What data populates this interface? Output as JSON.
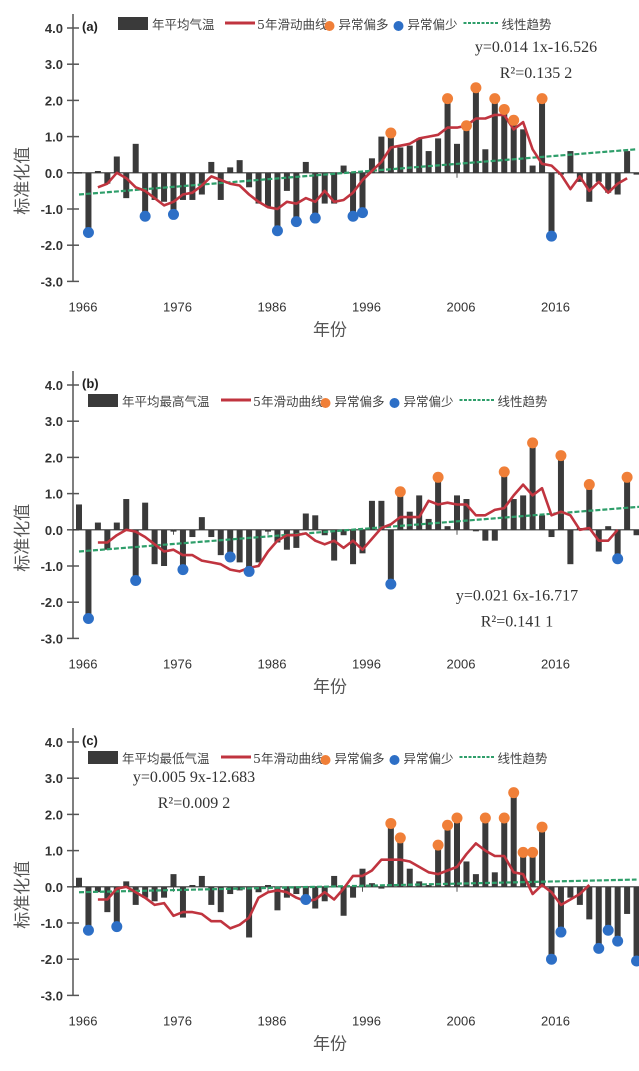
{
  "chart_data": [
    {
      "type": "bar",
      "panel": "(a)",
      "title": "",
      "xlabel": "年份",
      "ylabel": "标准化值",
      "ylim": [
        -3.0,
        4.0
      ],
      "yticks": [
        "4.0",
        "3.0",
        "2.0",
        "1.0",
        "0.0",
        "-1.0",
        "-2.0",
        "-3.0"
      ],
      "xticks": [
        "1966",
        "1976",
        "1986",
        "1996",
        "2006",
        "2016"
      ],
      "x_start": 1966,
      "legend": {
        "bar": "年平均气温",
        "line": "5年滑动曲线",
        "high": "异常偏多",
        "low": "异常偏少",
        "trend": "线性趋势"
      },
      "legend_position": "top",
      "equation": "y=0.014 1x-16.526",
      "r2": "R²=0.135 2",
      "equation_position": "top-right",
      "trend": {
        "start": -0.6,
        "end": 0.65
      },
      "values": [
        0.02,
        -1.65,
        0.05,
        -0.3,
        0.45,
        -0.7,
        0.8,
        -1.2,
        -0.75,
        -0.8,
        -1.15,
        -0.75,
        -0.75,
        -0.6,
        0.3,
        -0.75,
        0.15,
        0.35,
        -0.4,
        -0.85,
        -0.95,
        -1.6,
        -0.5,
        -1.35,
        0.3,
        -1.25,
        -0.85,
        -0.85,
        0.2,
        -1.2,
        -1.1,
        0.4,
        1.0,
        1.1,
        0.7,
        0.75,
        0.95,
        0.6,
        0.95,
        2.05,
        0.8,
        1.3,
        2.35,
        0.65,
        2.05,
        1.75,
        1.45,
        1.2,
        0.2,
        2.05,
        -1.75,
        -0.05,
        0.6,
        -0.25,
        -0.8,
        -0.25,
        -0.55,
        -0.6,
        0.6,
        -0.05
      ],
      "high_markers": [
        33,
        39,
        41,
        42,
        44,
        45,
        46,
        49
      ],
      "low_markers": [
        1,
        7,
        10,
        21,
        23,
        25,
        29,
        30,
        50
      ],
      "moving_avg": [
        null,
        null,
        -0.4,
        -0.3,
        0.0,
        -0.15,
        -0.4,
        -0.5,
        -0.7,
        -0.9,
        -0.8,
        -0.6,
        -0.55,
        -0.35,
        -0.1,
        -0.2,
        -0.3,
        -0.35,
        -0.6,
        -0.8,
        -0.95,
        -1.0,
        -0.8,
        -0.85,
        -0.7,
        -0.8,
        -0.5,
        -0.8,
        -0.75,
        -0.55,
        -0.2,
        0.05,
        0.3,
        0.7,
        0.75,
        0.8,
        0.95,
        1.0,
        1.05,
        1.25,
        1.25,
        1.3,
        1.5,
        1.5,
        1.6,
        1.6,
        1.2,
        1.4,
        0.65,
        0.25,
        0.2,
        -0.05,
        -0.45,
        -0.1,
        -0.5,
        -0.25,
        -0.55,
        -0.3,
        -0.15,
        null
      ]
    },
    {
      "type": "bar",
      "panel": "(b)",
      "title": "",
      "xlabel": "年份",
      "ylabel": "标准化值",
      "ylim": [
        -3.0,
        4.0
      ],
      "yticks": [
        "4.0",
        "3.0",
        "2.0",
        "1.0",
        "0.0",
        "-1.0",
        "-2.0",
        "-3.0"
      ],
      "xticks": [
        "1966",
        "1976",
        "1986",
        "1996",
        "2006",
        "2016"
      ],
      "x_start": 1966,
      "legend": {
        "bar": "年平均最高气温",
        "line": "5年滑动曲线",
        "high": "异常偏多",
        "low": "异常偏少",
        "trend": "线性趋势"
      },
      "legend_position": "top",
      "equation": "y=0.021 6x-16.717",
      "r2": "R²=0.141 1",
      "equation_position": "bottom-right",
      "trend": {
        "start": -0.6,
        "end": 0.65
      },
      "values": [
        0.7,
        -2.45,
        0.2,
        -0.55,
        0.2,
        0.85,
        -1.4,
        0.75,
        -0.95,
        -1.0,
        -0.05,
        -1.1,
        -0.2,
        0.35,
        -0.2,
        -0.7,
        -0.75,
        -0.9,
        -1.15,
        -0.9,
        -0.05,
        -0.35,
        -0.55,
        -0.5,
        0.45,
        0.4,
        -0.15,
        -0.85,
        -0.15,
        -0.95,
        -0.65,
        0.8,
        0.8,
        -1.5,
        1.05,
        0.5,
        0.95,
        0.3,
        1.45,
        0.1,
        0.95,
        0.85,
        0.0,
        -0.3,
        -0.3,
        1.6,
        0.85,
        0.95,
        2.4,
        0.4,
        -0.2,
        2.05,
        -0.95,
        0.05,
        1.25,
        -0.6,
        0.1,
        -0.8,
        1.45,
        -0.15,
        0.85
      ],
      "high_markers": [
        34,
        38,
        45,
        48,
        51,
        54,
        58
      ],
      "low_markers": [
        1,
        6,
        11,
        16,
        18,
        33,
        57
      ],
      "moving_avg": [
        null,
        null,
        -0.35,
        -0.35,
        -0.15,
        0.0,
        -0.05,
        -0.2,
        -0.4,
        -0.6,
        -0.55,
        -0.7,
        -0.7,
        -0.85,
        -0.9,
        -0.95,
        -1.1,
        -1.15,
        -1.05,
        -1.0,
        -0.6,
        -0.3,
        -0.15,
        -0.15,
        -0.1,
        -0.3,
        -0.4,
        -0.3,
        -0.5,
        -0.3,
        -0.55,
        -0.25,
        0.05,
        0.15,
        0.35,
        0.35,
        0.35,
        0.8,
        0.7,
        0.75,
        0.7,
        0.7,
        0.4,
        0.4,
        0.55,
        0.6,
        0.95,
        1.25,
        0.95,
        1.15,
        0.4,
        0.5,
        0.4,
        0.0,
        0.05,
        -0.3,
        -0.3,
        0.0,
        null,
        null,
        null
      ]
    },
    {
      "type": "bar",
      "panel": "(c)",
      "title": "",
      "xlabel": "年份",
      "ylabel": "标准化值",
      "ylim": [
        -3.0,
        4.0
      ],
      "yticks": [
        "4.0",
        "3.0",
        "2.0",
        "1.0",
        "0.0",
        "-1.0",
        "-2.0",
        "-3.0"
      ],
      "xticks": [
        "1966",
        "1976",
        "1986",
        "1996",
        "2006",
        "2016"
      ],
      "x_start": 1966,
      "legend": {
        "bar": "年平均最低气温",
        "line": "5年滑动曲线",
        "high": "异常偏多",
        "low": "异常偏少",
        "trend": "线性趋势"
      },
      "legend_position": "top",
      "equation": "y=0.005 9x-12.683",
      "r2": "R²=0.009 2",
      "equation_position": "top-left",
      "trend": {
        "start": -0.15,
        "end": 0.2
      },
      "values": [
        0.25,
        -1.2,
        -0.15,
        -0.7,
        -1.1,
        0.15,
        -0.5,
        -0.3,
        -0.4,
        -0.3,
        0.35,
        -0.85,
        0.05,
        0.3,
        -0.5,
        -0.7,
        -0.2,
        -0.1,
        -1.4,
        -0.15,
        0.05,
        -0.65,
        -0.3,
        -0.2,
        -0.35,
        -0.6,
        -0.4,
        0.3,
        -0.8,
        -0.3,
        0.5,
        0.1,
        -0.05,
        1.75,
        1.35,
        0.5,
        0.15,
        0.05,
        1.15,
        1.7,
        1.9,
        0.7,
        0.35,
        1.9,
        0.4,
        1.9,
        2.6,
        0.95,
        0.95,
        1.65,
        -2.0,
        -1.25,
        -0.3,
        -0.5,
        -0.9,
        -1.7,
        -1.2,
        -1.5,
        -0.75,
        -2.05
      ],
      "high_markers": [
        33,
        34,
        38,
        39,
        40,
        43,
        45,
        46,
        47,
        48,
        49
      ],
      "low_markers": [
        1,
        4,
        24,
        50,
        51,
        55,
        56,
        57,
        59
      ],
      "moving_avg": [
        null,
        null,
        -0.35,
        -0.35,
        -0.05,
        0.0,
        -0.15,
        -0.3,
        -0.5,
        -0.45,
        -0.8,
        -0.7,
        -0.7,
        -0.75,
        -0.95,
        -0.95,
        -1.15,
        -1.05,
        -0.85,
        -0.3,
        -0.15,
        -0.1,
        -0.15,
        -0.3,
        -0.4,
        -0.35,
        -0.15,
        -0.35,
        -0.05,
        0.3,
        0.3,
        0.45,
        0.75,
        0.75,
        0.75,
        0.7,
        0.55,
        0.4,
        0.35,
        0.45,
        0.55,
        0.9,
        1.2,
        1.0,
        0.85,
        0.85,
        0.4,
        0.35,
        -0.2,
        0.05,
        -0.15,
        -0.5,
        -0.35,
        -0.2,
        0.05,
        null,
        null,
        null,
        null,
        null
      ]
    }
  ],
  "colors": {
    "bar": "#3a3a3a",
    "moving_avg": "#c0343f",
    "trend": "#2e9e6a",
    "high": "#f07f38",
    "low": "#2d6fc6",
    "axis": "#555555"
  }
}
